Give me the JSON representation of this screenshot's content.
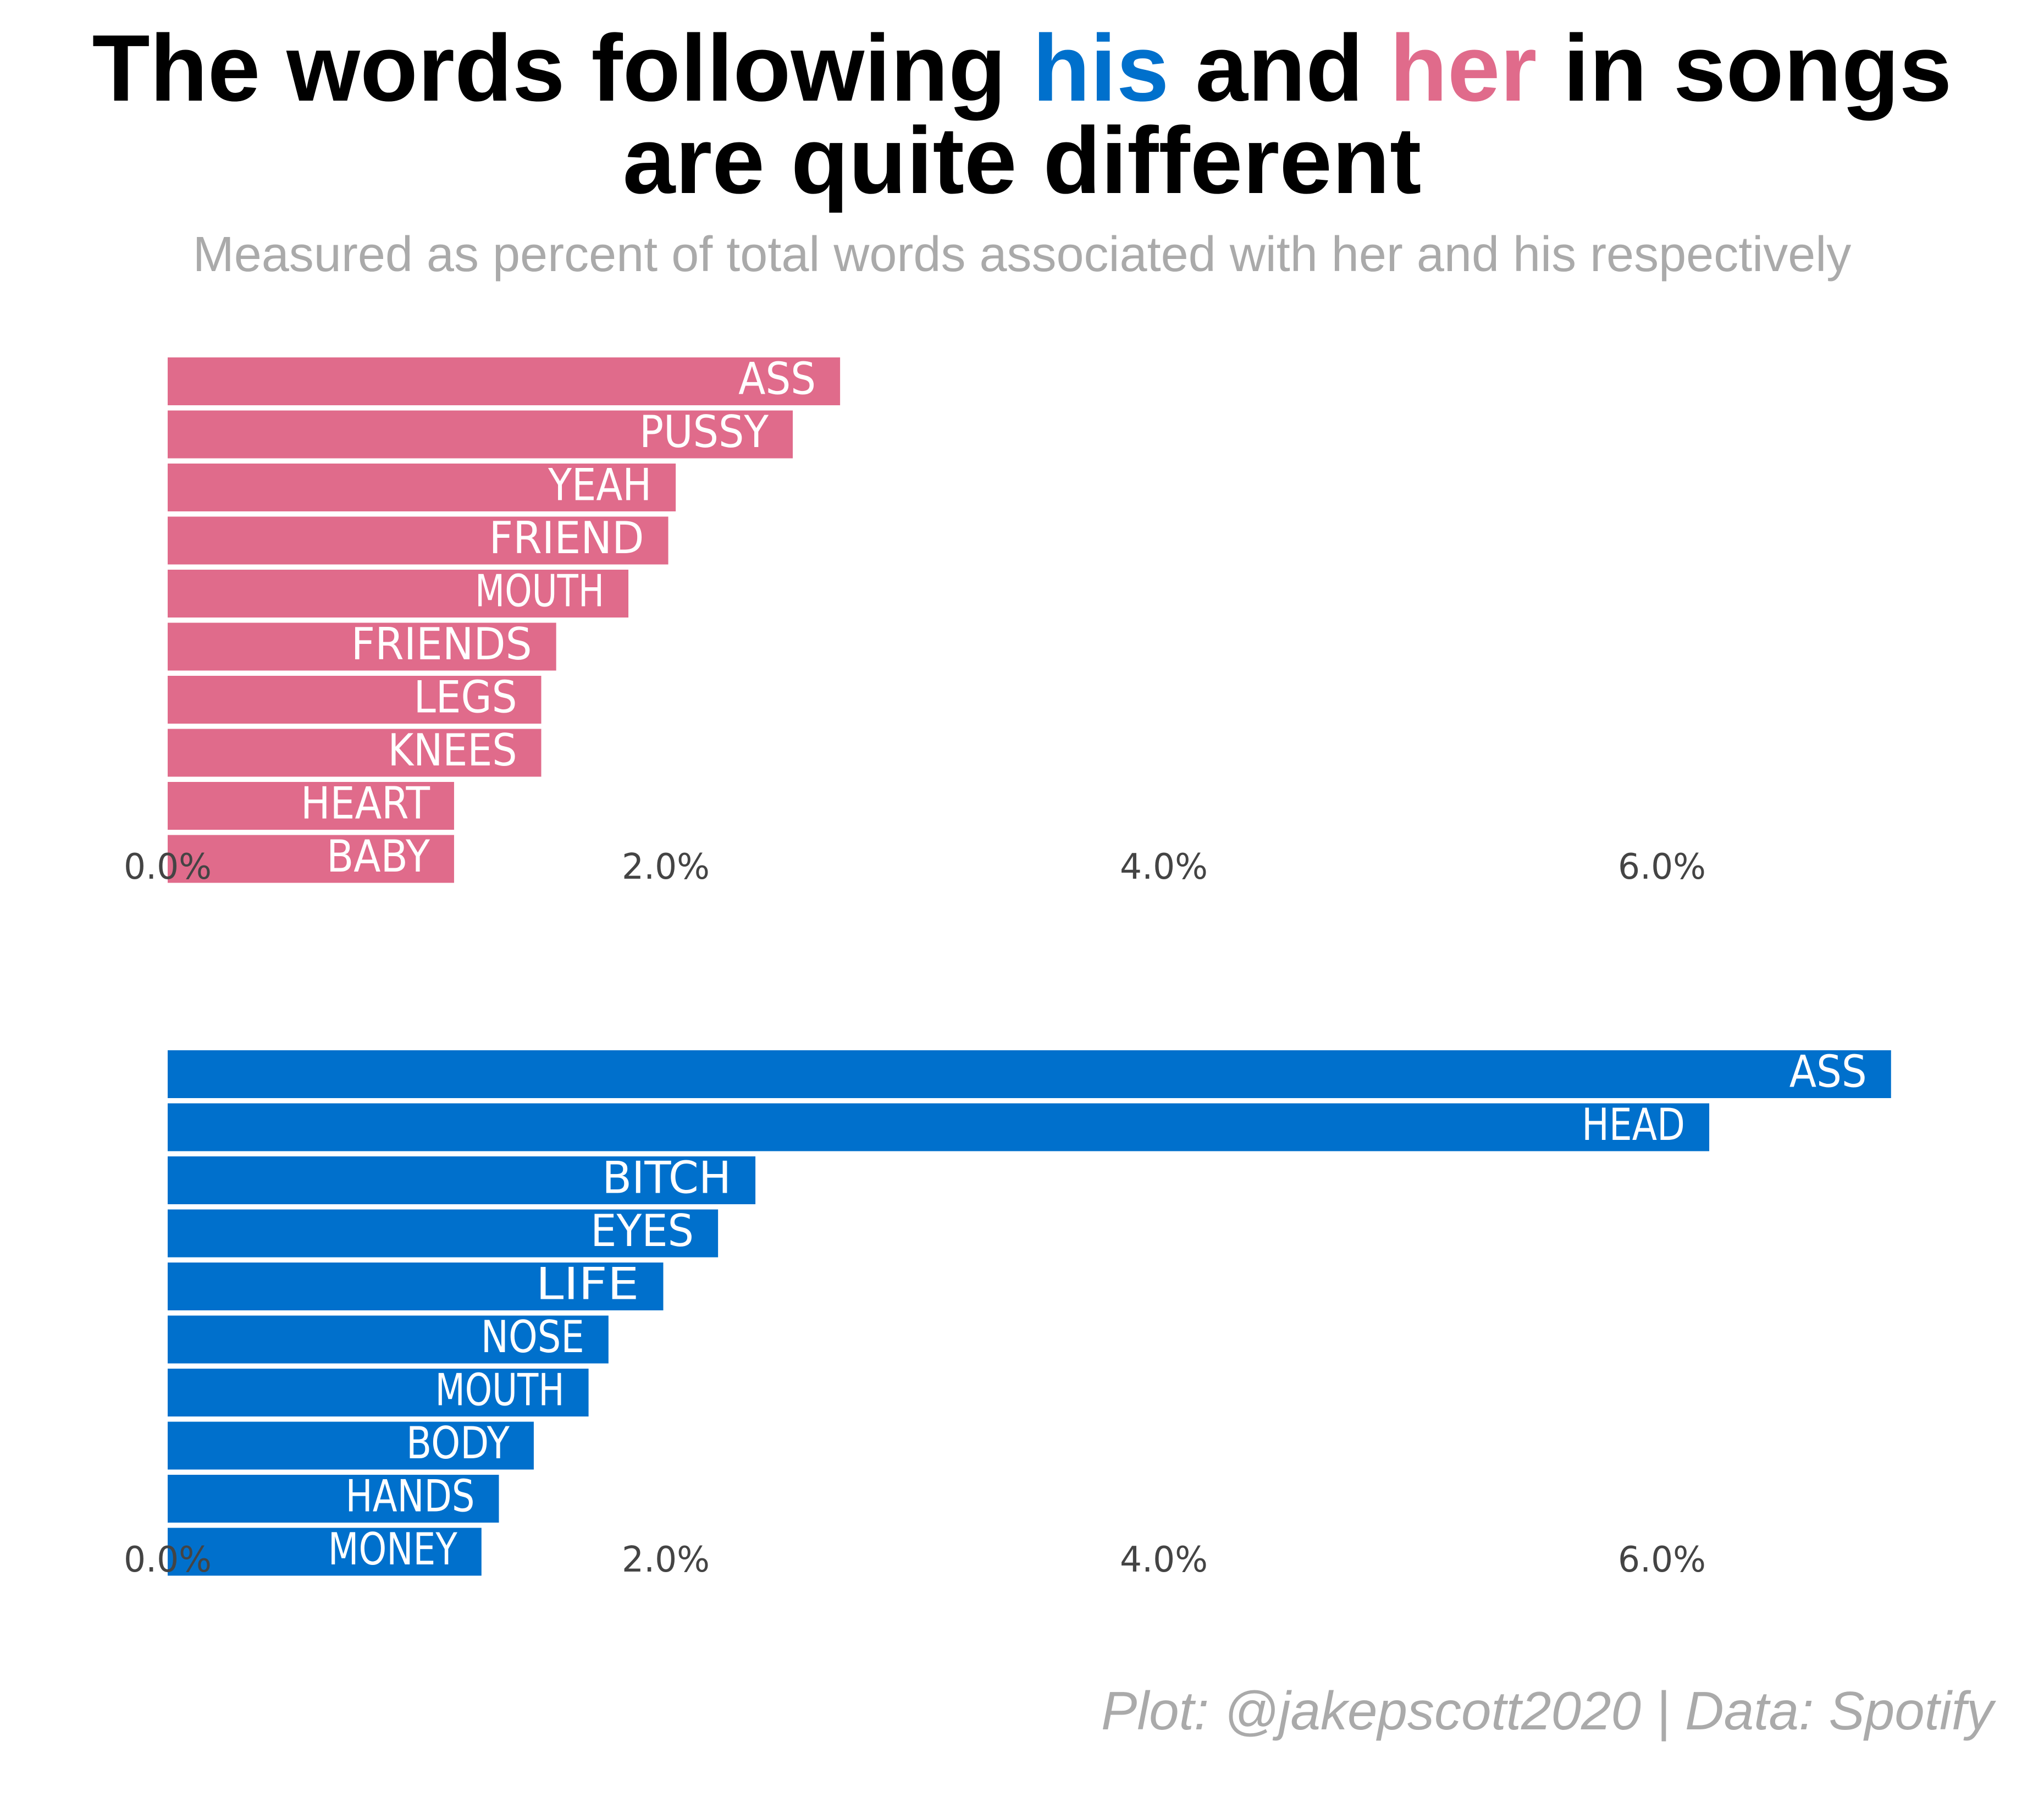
{
  "title": {
    "line1_before": "The words following ",
    "word_his": "his",
    "line1_mid": " and ",
    "word_her": "her",
    "line1_after": " in songs",
    "line2": "are quite different"
  },
  "subtitle": "Measured as percent of total words associated with her and his respectively",
  "caption": "Plot: @jakepscott2020 | Data: Spotify",
  "colors": {
    "his": "#0070cc",
    "her": "#e06b8b",
    "bar_label": "#ffffff",
    "tick_label": "#444444",
    "subtitle": "#aaaaaa"
  },
  "chart_data": [
    {
      "type": "bar",
      "orientation": "horizontal",
      "group": "her",
      "categories": [
        "ASS",
        "PUSSY",
        "YEAH",
        "FRIEND",
        "MOUTH",
        "FRIENDS",
        "LEGS",
        "KNEES",
        "HEART",
        "BABY"
      ],
      "values": [
        2.7,
        2.51,
        2.04,
        2.01,
        1.85,
        1.56,
        1.5,
        1.5,
        1.15,
        1.15
      ],
      "unit": "%",
      "xlim": [
        0,
        7.0
      ],
      "xticks": [
        "0.0%",
        "2.0%",
        "4.0%",
        "6.0%"
      ],
      "grid": false,
      "legend": "none",
      "title": "",
      "xlabel": "",
      "ylabel": ""
    },
    {
      "type": "bar",
      "orientation": "horizontal",
      "group": "his",
      "categories": [
        "ASS",
        "HEAD",
        "BITCH",
        "EYES",
        "LIFE",
        "NOSE",
        "MOUTH",
        "BODY",
        "HANDS",
        "MONEY"
      ],
      "values": [
        6.92,
        6.19,
        2.36,
        2.21,
        1.99,
        1.77,
        1.69,
        1.47,
        1.33,
        1.26
      ],
      "unit": "%",
      "xlim": [
        0,
        7.0
      ],
      "xticks": [
        "0.0%",
        "2.0%",
        "4.0%",
        "6.0%"
      ],
      "grid": false,
      "legend": "none",
      "title": "",
      "xlabel": "",
      "ylabel": ""
    }
  ]
}
